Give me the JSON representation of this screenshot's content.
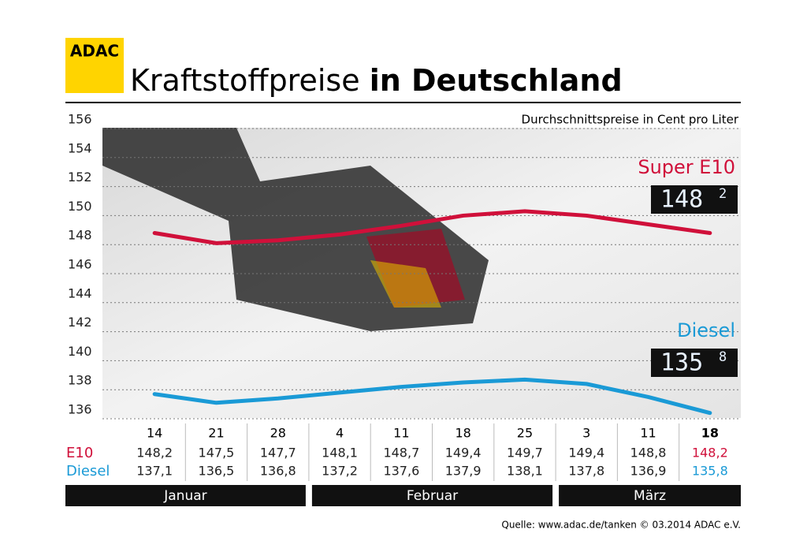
{
  "logo": "ADAC",
  "chart_data": {
    "type": "line",
    "title": "Kraftstoffpreise",
    "title_bold": "in Deutschland",
    "subtitle": "Durchschnittspreise in Cent pro Liter",
    "categories": [
      "14",
      "21",
      "28",
      "4",
      "11",
      "18",
      "25",
      "3",
      "11",
      "18"
    ],
    "month_groups": [
      {
        "label": "Januar",
        "count": 3
      },
      {
        "label": "Februar",
        "count": 4
      },
      {
        "label": "März",
        "count": 3
      }
    ],
    "series": [
      {
        "name": "E10",
        "color": "#d0103a",
        "values": [
          148.2,
          147.5,
          147.7,
          148.1,
          148.7,
          149.4,
          149.7,
          149.4,
          148.8,
          148.2
        ],
        "value_labels": [
          "148,2",
          "147,5",
          "147,7",
          "148,1",
          "148,7",
          "149,4",
          "149,7",
          "149,4",
          "148,8",
          "148,2"
        ]
      },
      {
        "name": "Diesel",
        "color": "#1a9ad6",
        "values": [
          137.1,
          136.5,
          136.8,
          137.2,
          137.6,
          137.9,
          138.1,
          137.8,
          136.9,
          135.8
        ],
        "value_labels": [
          "137,1",
          "136,5",
          "136,8",
          "137,2",
          "137,6",
          "137,9",
          "138,1",
          "137,8",
          "136,9",
          "135,8"
        ]
      }
    ],
    "displays": [
      {
        "label": "Super E10",
        "main": "148",
        "sup": "2"
      },
      {
        "label": "Diesel",
        "main": "135",
        "sup": "8"
      }
    ],
    "ylim": [
      136,
      156
    ],
    "yticks": [
      136,
      138,
      140,
      142,
      144,
      146,
      148,
      150,
      152,
      154,
      156
    ],
    "grid": true,
    "source": "Quelle: www.adac.de/tanken  © 03.2014  ADAC e.V."
  }
}
